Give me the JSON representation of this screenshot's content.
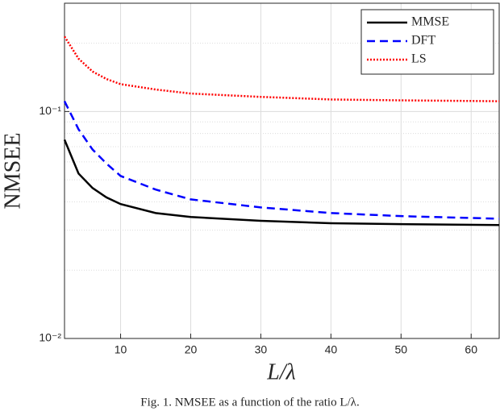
{
  "chart_data": {
    "type": "line",
    "caption": "Fig. 1.   NMSEE as a function of the ratio L/λ.",
    "xlabel": "L/λ",
    "ylabel": "NMSEE",
    "x": [
      2,
      4,
      6,
      8,
      10,
      15,
      20,
      30,
      40,
      50,
      64
    ],
    "series": [
      {
        "name": "MMSE",
        "color": "#000000",
        "dash": "solid",
        "values": [
          0.0751,
          0.0533,
          0.046,
          0.0418,
          0.0391,
          0.0357,
          0.0343,
          0.033,
          0.0322,
          0.0319,
          0.0316
        ]
      },
      {
        "name": "DFT",
        "color": "#0000ff",
        "dash": "dashed",
        "values": [
          0.111,
          0.0835,
          0.068,
          0.0589,
          0.052,
          0.0453,
          0.041,
          0.0378,
          0.0357,
          0.0346,
          0.0337
        ]
      },
      {
        "name": "LS",
        "color": "#ff0000",
        "dash": "dotted",
        "values": [
          0.214,
          0.171,
          0.15,
          0.139,
          0.132,
          0.125,
          0.12,
          0.116,
          0.113,
          0.112,
          0.111
        ]
      }
    ],
    "xlim": [
      2,
      64
    ],
    "xticks": [
      10,
      20,
      30,
      40,
      50,
      60
    ],
    "ylim": [
      0.01,
      0.3
    ],
    "log_y": true,
    "yticks": [
      {
        "value": 0.01,
        "label": "10⁻²"
      },
      {
        "value": 0.1,
        "label": "10⁻¹"
      }
    ],
    "y_minor_grid": [
      0.02,
      0.03,
      0.04,
      0.05,
      0.06,
      0.07,
      0.08,
      0.09,
      0.2,
      0.3
    ],
    "grid": true,
    "legend": "upper right"
  }
}
